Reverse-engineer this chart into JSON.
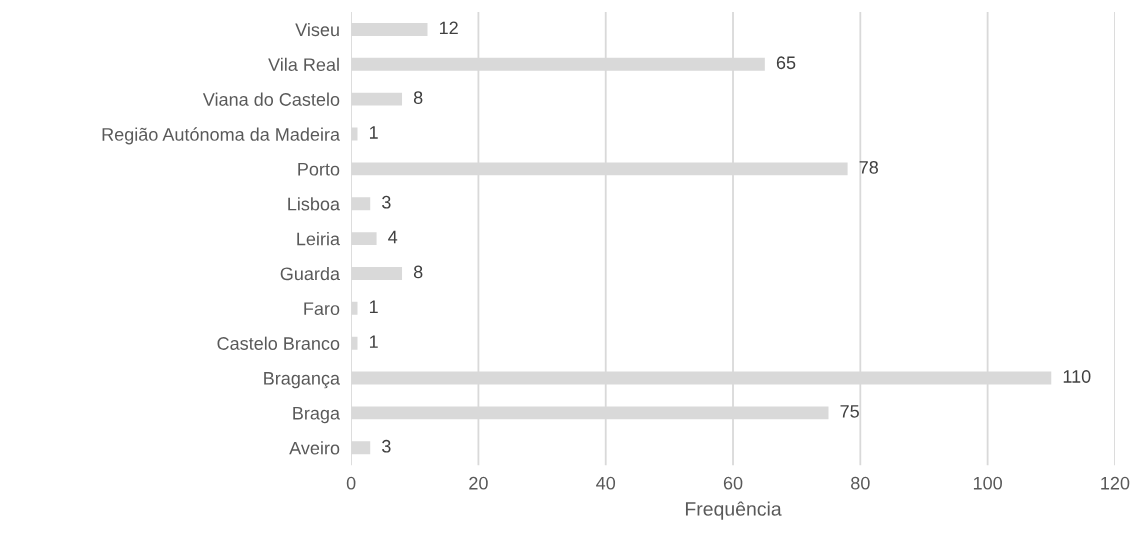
{
  "chart_data": {
    "type": "bar",
    "orientation": "horizontal",
    "xlabel": "Frequência",
    "categories": [
      "Viseu",
      "Vila Real",
      "Viana do Castelo",
      "Região Autónoma da Madeira",
      "Porto",
      "Lisboa",
      "Leiria",
      "Guarda",
      "Faro",
      "Castelo Branco",
      "Bragança",
      "Braga",
      "Aveiro"
    ],
    "values": [
      12,
      65,
      8,
      1,
      78,
      3,
      4,
      8,
      1,
      1,
      110,
      75,
      3
    ],
    "color": "#d9d9d9",
    "xlim": [
      0,
      120
    ],
    "xticks": [
      0,
      20,
      40,
      60,
      80,
      100,
      120
    ],
    "grid": "x",
    "data_labels": true
  }
}
